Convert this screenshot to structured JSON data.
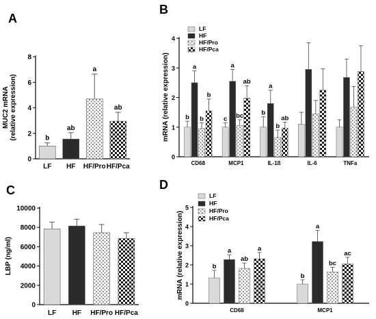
{
  "colors": {
    "lf": "#d9d9d9",
    "hf": "#2b2b2b",
    "axis": "#000000",
    "pattern_dark": "#1a1a1a"
  },
  "chart_data": [
    {
      "id": "A",
      "panel_label": "A",
      "type": "bar",
      "ylabel": "MUC2 mRNA\n(relative expression)",
      "ylim": [
        0,
        8
      ],
      "yticks": [
        "0",
        "2",
        "4",
        "6",
        "8"
      ],
      "categories": [
        "LF",
        "HF",
        "HF/Pro",
        "HF/Pca"
      ],
      "series": [
        {
          "styles": [
            "lf",
            "hf",
            "pro",
            "pca"
          ],
          "values": [
            1.0,
            1.55,
            4.7,
            2.95
          ],
          "errors": [
            0.25,
            0.5,
            1.95,
            0.7
          ],
          "letters": [
            "b",
            "ab",
            "a",
            "ab"
          ]
        }
      ],
      "grid": false,
      "legend": "none"
    },
    {
      "id": "B",
      "panel_label": "B",
      "type": "bar",
      "ylabel": "mRNA (relative expression)",
      "ylim": [
        0,
        4
      ],
      "yticks": [
        "0",
        "1",
        "2",
        "3",
        "4"
      ],
      "categories": [
        "CD68",
        "MCP1",
        "IL-1ß",
        "IL-6",
        "TNFa"
      ],
      "series": [
        {
          "name": "LF",
          "style": "lf",
          "values": [
            1.0,
            1.0,
            1.0,
            1.1,
            1.0
          ],
          "errors": [
            0.2,
            0.15,
            0.35,
            0.4,
            0.25
          ],
          "letters": [
            "b",
            "c",
            "b",
            "",
            ""
          ]
        },
        {
          "name": "HF",
          "style": "hf",
          "values": [
            2.5,
            2.55,
            1.8,
            2.95,
            2.68
          ],
          "errors": [
            0.4,
            0.4,
            0.45,
            0.9,
            0.62
          ],
          "letters": [
            "a",
            "a",
            "a",
            "",
            ""
          ]
        },
        {
          "name": "HF/Pro",
          "style": "pro",
          "values": [
            0.95,
            1.05,
            0.65,
            1.45,
            1.67
          ],
          "errors": [
            0.2,
            0.2,
            0.25,
            0.45,
            0.7
          ],
          "letters": [
            "b",
            "bc",
            "b",
            "",
            ""
          ]
        },
        {
          "name": "HF/Pca",
          "style": "pca",
          "values": [
            1.55,
            1.98,
            0.97,
            2.25,
            2.88
          ],
          "errors": [
            0.4,
            0.42,
            0.2,
            0.72,
            0.87
          ],
          "letters": [
            "b",
            "ab",
            "ab",
            "",
            ""
          ]
        }
      ],
      "grid": false,
      "legend": "top-left"
    },
    {
      "id": "C",
      "panel_label": "C",
      "type": "bar",
      "ylabel": "LBP (ng/ml)",
      "ylim": [
        0,
        10000
      ],
      "yticks": [
        "0",
        "2000",
        "4000",
        "6000",
        "8000",
        "10000"
      ],
      "categories": [
        "LF",
        "HF",
        "HF/Pro",
        "HF/Pca"
      ],
      "series": [
        {
          "styles": [
            "lf",
            "hf",
            "pro",
            "pca"
          ],
          "values": [
            7850,
            8150,
            7450,
            6850
          ],
          "errors": [
            700,
            700,
            850,
            600
          ],
          "letters": [
            "",
            "",
            "",
            ""
          ]
        }
      ],
      "grid": false,
      "legend": "none"
    },
    {
      "id": "D",
      "panel_label": "D",
      "type": "bar",
      "ylabel": "mRNA (relative expression)",
      "ylim": [
        0,
        5
      ],
      "yticks": [
        "0",
        "1",
        "2",
        "3",
        "4",
        "5"
      ],
      "categories": [
        "CD68",
        "MCP1"
      ],
      "series": [
        {
          "name": "LF",
          "style": "lf",
          "values": [
            1.32,
            1.0
          ],
          "errors": [
            0.4,
            0.22
          ],
          "letters": [
            "b",
            "b"
          ]
        },
        {
          "name": "HF",
          "style": "hf",
          "values": [
            2.28,
            3.22
          ],
          "errors": [
            0.25,
            0.58
          ],
          "letters": [
            "a",
            "a"
          ]
        },
        {
          "name": "HF/Pro",
          "style": "pro",
          "values": [
            1.82,
            1.63
          ],
          "errors": [
            0.28,
            0.25
          ],
          "letters": [
            "ab",
            "bc"
          ]
        },
        {
          "name": "HF/Pca",
          "style": "pca",
          "values": [
            2.32,
            2.05
          ],
          "errors": [
            0.33,
            0.35
          ],
          "letters": [
            "a",
            "ac"
          ]
        }
      ],
      "grid": false,
      "legend": "top-left"
    }
  ]
}
